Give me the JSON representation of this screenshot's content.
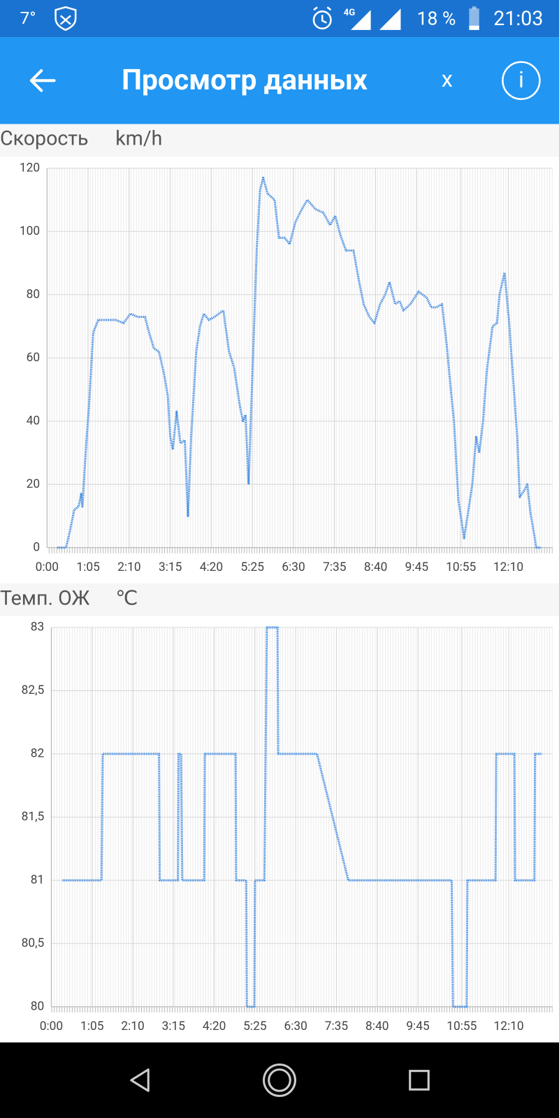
{
  "status_bar": {
    "temperature": "7°",
    "network": "4G",
    "battery": "18 %",
    "time": "21:03"
  },
  "app_bar": {
    "title": "Просмотр данных",
    "close": "x",
    "info": "i"
  },
  "chart_data": [
    {
      "type": "line",
      "title": "Скорость",
      "unit": "km/h",
      "color": "#4a90e2",
      "x": [
        16,
        30,
        36,
        43,
        50,
        54,
        56,
        61,
        67,
        73,
        81,
        93,
        109,
        121,
        132,
        143,
        155,
        160,
        169,
        177,
        185,
        191,
        195,
        199,
        205,
        211,
        218,
        223,
        228,
        236,
        242,
        248,
        256,
        265,
        279,
        288,
        296,
        305,
        310,
        314,
        319,
        325,
        332,
        337,
        342,
        349,
        360,
        367,
        376,
        384,
        393,
        403,
        412,
        425,
        437,
        448,
        456,
        464,
        473,
        485,
        493,
        501,
        510,
        518,
        527,
        535,
        542,
        551,
        558,
        564,
        575,
        588,
        601,
        608,
        616,
        625,
        632,
        639,
        644,
        651,
        660,
        667,
        673,
        679,
        684,
        690,
        696,
        705,
        712,
        716,
        724,
        731,
        738,
        744,
        748,
        755,
        760,
        765,
        771,
        774,
        781
      ],
      "values": [
        0,
        0,
        5,
        12,
        13,
        17,
        13,
        30,
        47,
        68,
        72,
        72,
        72,
        71,
        74,
        73,
        73,
        69,
        63,
        62,
        55,
        48,
        35,
        31,
        43,
        33,
        34,
        10,
        35,
        62,
        70,
        74,
        72,
        73,
        75,
        62,
        57,
        45,
        40,
        42,
        20,
        55,
        95,
        113,
        117,
        112,
        110,
        98,
        98,
        96,
        103,
        107,
        110,
        107,
        106,
        102,
        105,
        99,
        94,
        94,
        85,
        77,
        73,
        71,
        77,
        80,
        84,
        77,
        78,
        75,
        77,
        81,
        79,
        76,
        76,
        77,
        65,
        50,
        40,
        15,
        3,
        12,
        20,
        35,
        30,
        40,
        56,
        70,
        71,
        80,
        87,
        72,
        52,
        35,
        16,
        18,
        20,
        11,
        4,
        0,
        0
      ],
      "xlim": [
        0,
        800
      ],
      "ylim": [
        0,
        120
      ],
      "xticks": [
        {
          "value": 0,
          "label": "0:00"
        },
        {
          "value": 65,
          "label": "1:05"
        },
        {
          "value": 130,
          "label": "2:10"
        },
        {
          "value": 195,
          "label": "3:15"
        },
        {
          "value": 260,
          "label": "4:20"
        },
        {
          "value": 325,
          "label": "5:25"
        },
        {
          "value": 390,
          "label": "6:30"
        },
        {
          "value": 455,
          "label": "7:35"
        },
        {
          "value": 520,
          "label": "8:40"
        },
        {
          "value": 585,
          "label": "9:45"
        },
        {
          "value": 655,
          "label": "10:55"
        },
        {
          "value": 730,
          "label": "12:10"
        }
      ],
      "yticks": [
        0,
        20,
        40,
        60,
        80,
        100,
        120
      ],
      "grid": true
    },
    {
      "type": "line",
      "title": "Темп. ОЖ",
      "unit": "℃",
      "color": "#4a90e2",
      "x": [
        18,
        80,
        82,
        172,
        173,
        202,
        203,
        207,
        209,
        244,
        245,
        294,
        295,
        311,
        312,
        324,
        325,
        340,
        342,
        344,
        361,
        362,
        424,
        474,
        639,
        641,
        663,
        664,
        709,
        710,
        739,
        740,
        771,
        772,
        783
      ],
      "values": [
        81,
        81,
        82,
        82,
        81,
        81,
        82,
        82,
        81,
        81,
        82,
        82,
        81,
        81,
        80,
        80,
        81,
        81,
        82,
        83,
        83,
        82,
        82,
        81,
        81,
        80,
        80,
        81,
        81,
        82,
        82,
        81,
        81,
        82,
        82
      ],
      "xlim": [
        0,
        800
      ],
      "ylim": [
        80,
        83
      ],
      "xticks": [
        {
          "value": 0,
          "label": "0:00"
        },
        {
          "value": 65,
          "label": "1:05"
        },
        {
          "value": 130,
          "label": "2:10"
        },
        {
          "value": 195,
          "label": "3:15"
        },
        {
          "value": 260,
          "label": "4:20"
        },
        {
          "value": 325,
          "label": "5:25"
        },
        {
          "value": 390,
          "label": "6:30"
        },
        {
          "value": 455,
          "label": "7:35"
        },
        {
          "value": 520,
          "label": "8:40"
        },
        {
          "value": 585,
          "label": "9:45"
        },
        {
          "value": 655,
          "label": "10:55"
        },
        {
          "value": 730,
          "label": "12:10"
        }
      ],
      "yticks": [
        80,
        {
          "value": 80.5,
          "label": "80,5"
        },
        81,
        {
          "value": 81.5,
          "label": "81,5"
        },
        82,
        {
          "value": 82.5,
          "label": "82,5"
        },
        83
      ],
      "grid": true
    }
  ]
}
